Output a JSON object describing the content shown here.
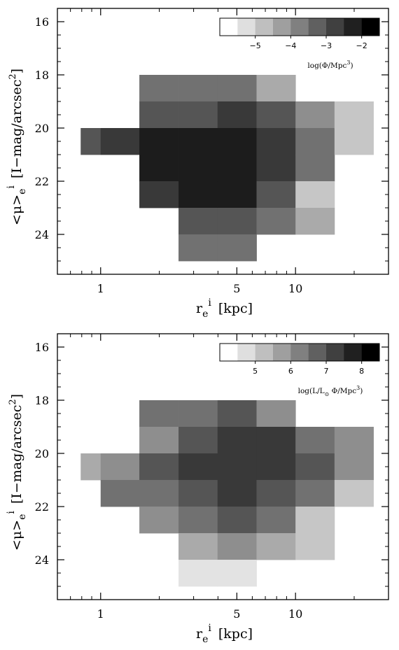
{
  "chart_data": [
    {
      "type": "heatmap",
      "xlabel": "r_e^i [kpc]",
      "ylabel": "<μ>_e^i [I−mag/arcsec^2]",
      "x_scale": "log",
      "xlim": [
        0.6,
        30
      ],
      "ylim": [
        25.5,
        15.5
      ],
      "x_ticks": [
        1,
        5,
        10
      ],
      "x_tick_labels": [
        "1",
        "5",
        "10"
      ],
      "y_ticks": [
        16,
        18,
        20,
        22,
        24
      ],
      "y_tick_labels": [
        "16",
        "18",
        "20",
        "22",
        "24"
      ],
      "x_bin_edges": [
        0.79,
        1.0,
        1.58,
        2.51,
        3.98,
        6.31,
        10.0,
        15.85,
        25.12
      ],
      "y_bin_edges": [
        18,
        19,
        20,
        21,
        22,
        23,
        24,
        25
      ],
      "colorbar": {
        "title": "log(Φ/Mpc^3)",
        "min": -6,
        "max": -1.5,
        "ticks": [
          -5,
          -4,
          -3,
          -2
        ],
        "tick_labels": [
          "−5",
          "−4",
          "−3",
          "−2"
        ],
        "levels": 9
      },
      "cells": [
        {
          "x": 0,
          "y": 2,
          "value": -3.0
        },
        {
          "x": 1,
          "y": 2,
          "value": -2.5
        },
        {
          "x": 2,
          "y": 0,
          "value": -3.5
        },
        {
          "x": 2,
          "y": 1,
          "value": -3.0
        },
        {
          "x": 2,
          "y": 2,
          "value": -2.0
        },
        {
          "x": 2,
          "y": 3,
          "value": -2.0
        },
        {
          "x": 2,
          "y": 4,
          "value": -2.5
        },
        {
          "x": 3,
          "y": 0,
          "value": -3.5
        },
        {
          "x": 3,
          "y": 1,
          "value": -3.0
        },
        {
          "x": 3,
          "y": 2,
          "value": -2.0
        },
        {
          "x": 3,
          "y": 3,
          "value": -2.0
        },
        {
          "x": 3,
          "y": 4,
          "value": -2.0
        },
        {
          "x": 3,
          "y": 5,
          "value": -3.0
        },
        {
          "x": 3,
          "y": 6,
          "value": -3.5
        },
        {
          "x": 4,
          "y": 0,
          "value": -3.5
        },
        {
          "x": 4,
          "y": 1,
          "value": -2.5
        },
        {
          "x": 4,
          "y": 2,
          "value": -2.0
        },
        {
          "x": 4,
          "y": 3,
          "value": -2.0
        },
        {
          "x": 4,
          "y": 4,
          "value": -2.0
        },
        {
          "x": 4,
          "y": 5,
          "value": -3.0
        },
        {
          "x": 4,
          "y": 6,
          "value": -3.5
        },
        {
          "x": 5,
          "y": 0,
          "value": -4.5
        },
        {
          "x": 5,
          "y": 1,
          "value": -3.0
        },
        {
          "x": 5,
          "y": 2,
          "value": -2.5
        },
        {
          "x": 5,
          "y": 3,
          "value": -2.5
        },
        {
          "x": 5,
          "y": 4,
          "value": -3.0
        },
        {
          "x": 5,
          "y": 5,
          "value": -3.5
        },
        {
          "x": 6,
          "y": 1,
          "value": -4.0
        },
        {
          "x": 6,
          "y": 2,
          "value": -3.5
        },
        {
          "x": 6,
          "y": 3,
          "value": -3.5
        },
        {
          "x": 6,
          "y": 4,
          "value": -5.0
        },
        {
          "x": 6,
          "y": 5,
          "value": -4.5
        },
        {
          "x": 7,
          "y": 1,
          "value": -5.0
        },
        {
          "x": 7,
          "y": 2,
          "value": -5.0
        }
      ]
    },
    {
      "type": "heatmap",
      "xlabel": "r_e^i [kpc]",
      "ylabel": "<μ>_e^i [I−mag/arcsec^2]",
      "x_scale": "log",
      "xlim": [
        0.6,
        30
      ],
      "ylim": [
        25.5,
        15.5
      ],
      "x_ticks": [
        1,
        5,
        10
      ],
      "x_tick_labels": [
        "1",
        "5",
        "10"
      ],
      "y_ticks": [
        16,
        18,
        20,
        22,
        24
      ],
      "y_tick_labels": [
        "16",
        "18",
        "20",
        "22",
        "24"
      ],
      "x_bin_edges": [
        0.79,
        1.0,
        1.58,
        2.51,
        3.98,
        6.31,
        10.0,
        15.85,
        25.12
      ],
      "y_bin_edges": [
        18,
        19,
        20,
        21,
        22,
        23,
        24,
        25
      ],
      "colorbar": {
        "title": "log(L/L_⊙ Φ/Mpc^3)",
        "min": 4,
        "max": 8.5,
        "ticks": [
          5,
          6,
          7,
          8
        ],
        "tick_labels": [
          "5",
          "6",
          "7",
          "8"
        ],
        "levels": 9
      },
      "cells": [
        {
          "x": 0,
          "y": 2,
          "value": 5.5
        },
        {
          "x": 1,
          "y": 2,
          "value": 6.0
        },
        {
          "x": 1,
          "y": 3,
          "value": 6.5
        },
        {
          "x": 2,
          "y": 0,
          "value": 6.5
        },
        {
          "x": 2,
          "y": 1,
          "value": 6.0
        },
        {
          "x": 2,
          "y": 2,
          "value": 7.0
        },
        {
          "x": 2,
          "y": 3,
          "value": 6.5
        },
        {
          "x": 2,
          "y": 4,
          "value": 6.0
        },
        {
          "x": 3,
          "y": 0,
          "value": 6.5
        },
        {
          "x": 3,
          "y": 1,
          "value": 7.0
        },
        {
          "x": 3,
          "y": 2,
          "value": 7.5
        },
        {
          "x": 3,
          "y": 3,
          "value": 7.0
        },
        {
          "x": 3,
          "y": 4,
          "value": 6.5
        },
        {
          "x": 3,
          "y": 5,
          "value": 5.5
        },
        {
          "x": 3,
          "y": 6,
          "value": 4.5
        },
        {
          "x": 4,
          "y": 0,
          "value": 7.0
        },
        {
          "x": 4,
          "y": 1,
          "value": 7.5
        },
        {
          "x": 4,
          "y": 2,
          "value": 7.5
        },
        {
          "x": 4,
          "y": 3,
          "value": 7.5
        },
        {
          "x": 4,
          "y": 4,
          "value": 7.0
        },
        {
          "x": 4,
          "y": 5,
          "value": 6.0
        },
        {
          "x": 4,
          "y": 6,
          "value": 4.5
        },
        {
          "x": 5,
          "y": 0,
          "value": 6.0
        },
        {
          "x": 5,
          "y": 1,
          "value": 7.5
        },
        {
          "x": 5,
          "y": 2,
          "value": 7.5
        },
        {
          "x": 5,
          "y": 3,
          "value": 7.0
        },
        {
          "x": 5,
          "y": 4,
          "value": 6.5
        },
        {
          "x": 5,
          "y": 5,
          "value": 5.5
        },
        {
          "x": 6,
          "y": 1,
          "value": 6.5
        },
        {
          "x": 6,
          "y": 2,
          "value": 7.0
        },
        {
          "x": 6,
          "y": 3,
          "value": 6.5
        },
        {
          "x": 6,
          "y": 4,
          "value": 5.0
        },
        {
          "x": 6,
          "y": 5,
          "value": 5.0
        },
        {
          "x": 7,
          "y": 1,
          "value": 6.0
        },
        {
          "x": 7,
          "y": 2,
          "value": 6.0
        },
        {
          "x": 7,
          "y": 3,
          "value": 5.0
        }
      ]
    }
  ]
}
